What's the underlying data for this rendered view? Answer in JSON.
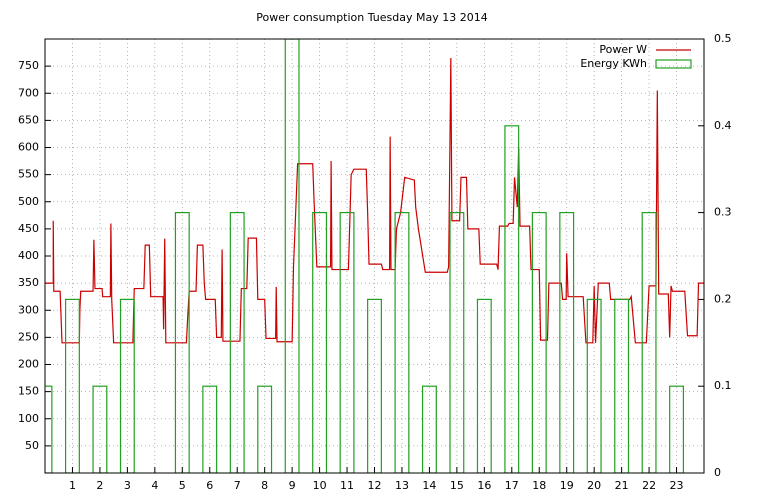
{
  "chart_data": {
    "type": "line",
    "title": "Power consumption Tuesday May 13 2014",
    "xlim": [
      0,
      24
    ],
    "xticks": [
      1,
      2,
      3,
      4,
      5,
      6,
      7,
      8,
      9,
      10,
      11,
      12,
      13,
      14,
      15,
      16,
      17,
      18,
      19,
      20,
      21,
      22,
      23
    ],
    "ylim": [
      0,
      800
    ],
    "yticks": [
      50,
      100,
      150,
      200,
      250,
      300,
      350,
      400,
      450,
      500,
      550,
      600,
      650,
      700,
      750
    ],
    "y2lim": [
      0,
      0.5
    ],
    "y2ticks": [
      0,
      0.1,
      0.2,
      0.3,
      0.4,
      0.5
    ],
    "grid": true,
    "legend": "top-right",
    "series": [
      {
        "name": "Power W",
        "color": "#cc0000",
        "kind": "line",
        "x": [
          0,
          0.3,
          0.3,
          0.32,
          0.55,
          0.62,
          1.25,
          1.27,
          1.3,
          1.75,
          1.78,
          1.82,
          2.08,
          2.1,
          2.38,
          2.4,
          2.43,
          2.5,
          3.2,
          3.25,
          3.6,
          3.65,
          3.8,
          3.85,
          4.3,
          4.32,
          4.36,
          4.4,
          5.15,
          5.2,
          5.25,
          5.5,
          5.55,
          5.75,
          5.8,
          5.85,
          6.2,
          6.25,
          6.42,
          6.45,
          6.48,
          7.1,
          7.15,
          7.35,
          7.4,
          7.7,
          7.75,
          8.0,
          8.05,
          8.4,
          8.42,
          8.45,
          9.0,
          9.05,
          9.2,
          9.75,
          9.8,
          9.9,
          10.4,
          10.42,
          10.45,
          11.05,
          11.15,
          11.25,
          11.7,
          11.75,
          11.8,
          12.25,
          12.3,
          12.55,
          12.57,
          12.6,
          12.75,
          12.8,
          12.95,
          13.1,
          13.45,
          13.5,
          13.6,
          13.85,
          14.65,
          14.7,
          14.78,
          14.82,
          15.1,
          15.15,
          15.35,
          15.4,
          15.8,
          15.85,
          16.45,
          16.5,
          16.55,
          16.85,
          16.9,
          17.05,
          17.1,
          17.2,
          17.25,
          17.3,
          17.65,
          17.7,
          18.0,
          18.05,
          18.3,
          18.35,
          18.8,
          18.85,
          18.98,
          19.0,
          19.05,
          19.6,
          19.7,
          19.95,
          20.0,
          20.05,
          20.15,
          20.55,
          20.6,
          21.3,
          21.35,
          21.5,
          21.9,
          22.0,
          22.25,
          22.3,
          22.35,
          22.7,
          22.75,
          22.8,
          22.85,
          23.3,
          23.4,
          23.75,
          23.8,
          24
        ],
        "values": [
          350,
          350,
          465,
          335,
          335,
          240,
          240,
          300,
          335,
          335,
          430,
          340,
          340,
          325,
          325,
          460,
          320,
          240,
          240,
          340,
          340,
          420,
          420,
          325,
          325,
          265,
          432,
          240,
          240,
          290,
          335,
          335,
          420,
          420,
          350,
          320,
          320,
          250,
          250,
          412,
          243,
          243,
          340,
          340,
          433,
          433,
          320,
          320,
          248,
          248,
          343,
          242,
          242,
          380,
          570,
          570,
          500,
          380,
          380,
          575,
          375,
          375,
          550,
          560,
          560,
          480,
          385,
          385,
          375,
          375,
          620,
          375,
          375,
          450,
          480,
          545,
          540,
          490,
          450,
          370,
          370,
          380,
          765,
          465,
          465,
          545,
          545,
          450,
          450,
          385,
          385,
          375,
          455,
          455,
          460,
          460,
          545,
          490,
          600,
          455,
          455,
          375,
          375,
          245,
          245,
          350,
          350,
          320,
          320,
          405,
          325,
          325,
          240,
          240,
          345,
          240,
          350,
          350,
          320,
          320,
          325,
          240,
          240,
          345,
          345,
          705,
          330,
          330,
          250,
          345,
          335,
          335,
          253,
          253,
          350,
          350
        ]
      },
      {
        "name": "Energy KWh",
        "color": "#22a022",
        "kind": "boxes",
        "axis": "y2",
        "x": [
          0,
          1,
          2,
          3,
          4,
          5,
          6,
          7,
          8,
          9,
          10,
          11,
          12,
          13,
          14,
          15,
          16,
          17,
          18,
          19,
          20,
          21,
          22,
          23
        ],
        "values": [
          0.1,
          0.2,
          0.1,
          0.2,
          0,
          0.3,
          0.1,
          0.3,
          0.1,
          0.5,
          0.3,
          0.3,
          0.2,
          0.3,
          0.1,
          0.3,
          0.2,
          0.4,
          0.3,
          0.3,
          0.2,
          0.2,
          0.3,
          0.1
        ]
      }
    ]
  }
}
